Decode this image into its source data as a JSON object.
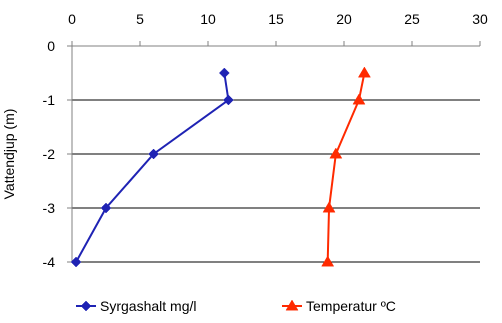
{
  "chart_data": {
    "type": "line",
    "title": "",
    "xlabel": "",
    "ylabel": "Vattendjup (m)",
    "x_axis_position": "top",
    "xlim": [
      0,
      30
    ],
    "xticks": [
      "0",
      "5",
      "10",
      "15",
      "20",
      "25",
      "30"
    ],
    "ylim": [
      -4,
      0
    ],
    "yticks": [
      "0",
      "-1",
      "-2",
      "-3",
      "-4"
    ],
    "grid": "horizontal",
    "legend_position": "bottom",
    "series": [
      {
        "name": "Syrgashalt mg/l",
        "color": "#1f23b4",
        "marker": "diamond",
        "points": [
          {
            "x": 11.2,
            "y": -0.5
          },
          {
            "x": 11.5,
            "y": -1
          },
          {
            "x": 6.0,
            "y": -2
          },
          {
            "x": 2.5,
            "y": -3
          },
          {
            "x": 0.3,
            "y": -4
          }
        ]
      },
      {
        "name": "Temperatur ºC",
        "color": "#ff2a00",
        "marker": "triangle",
        "points": [
          {
            "x": 21.5,
            "y": -0.5
          },
          {
            "x": 21.1,
            "y": -1
          },
          {
            "x": 19.4,
            "y": -2
          },
          {
            "x": 18.9,
            "y": -3
          },
          {
            "x": 18.8,
            "y": -4
          }
        ]
      }
    ]
  }
}
